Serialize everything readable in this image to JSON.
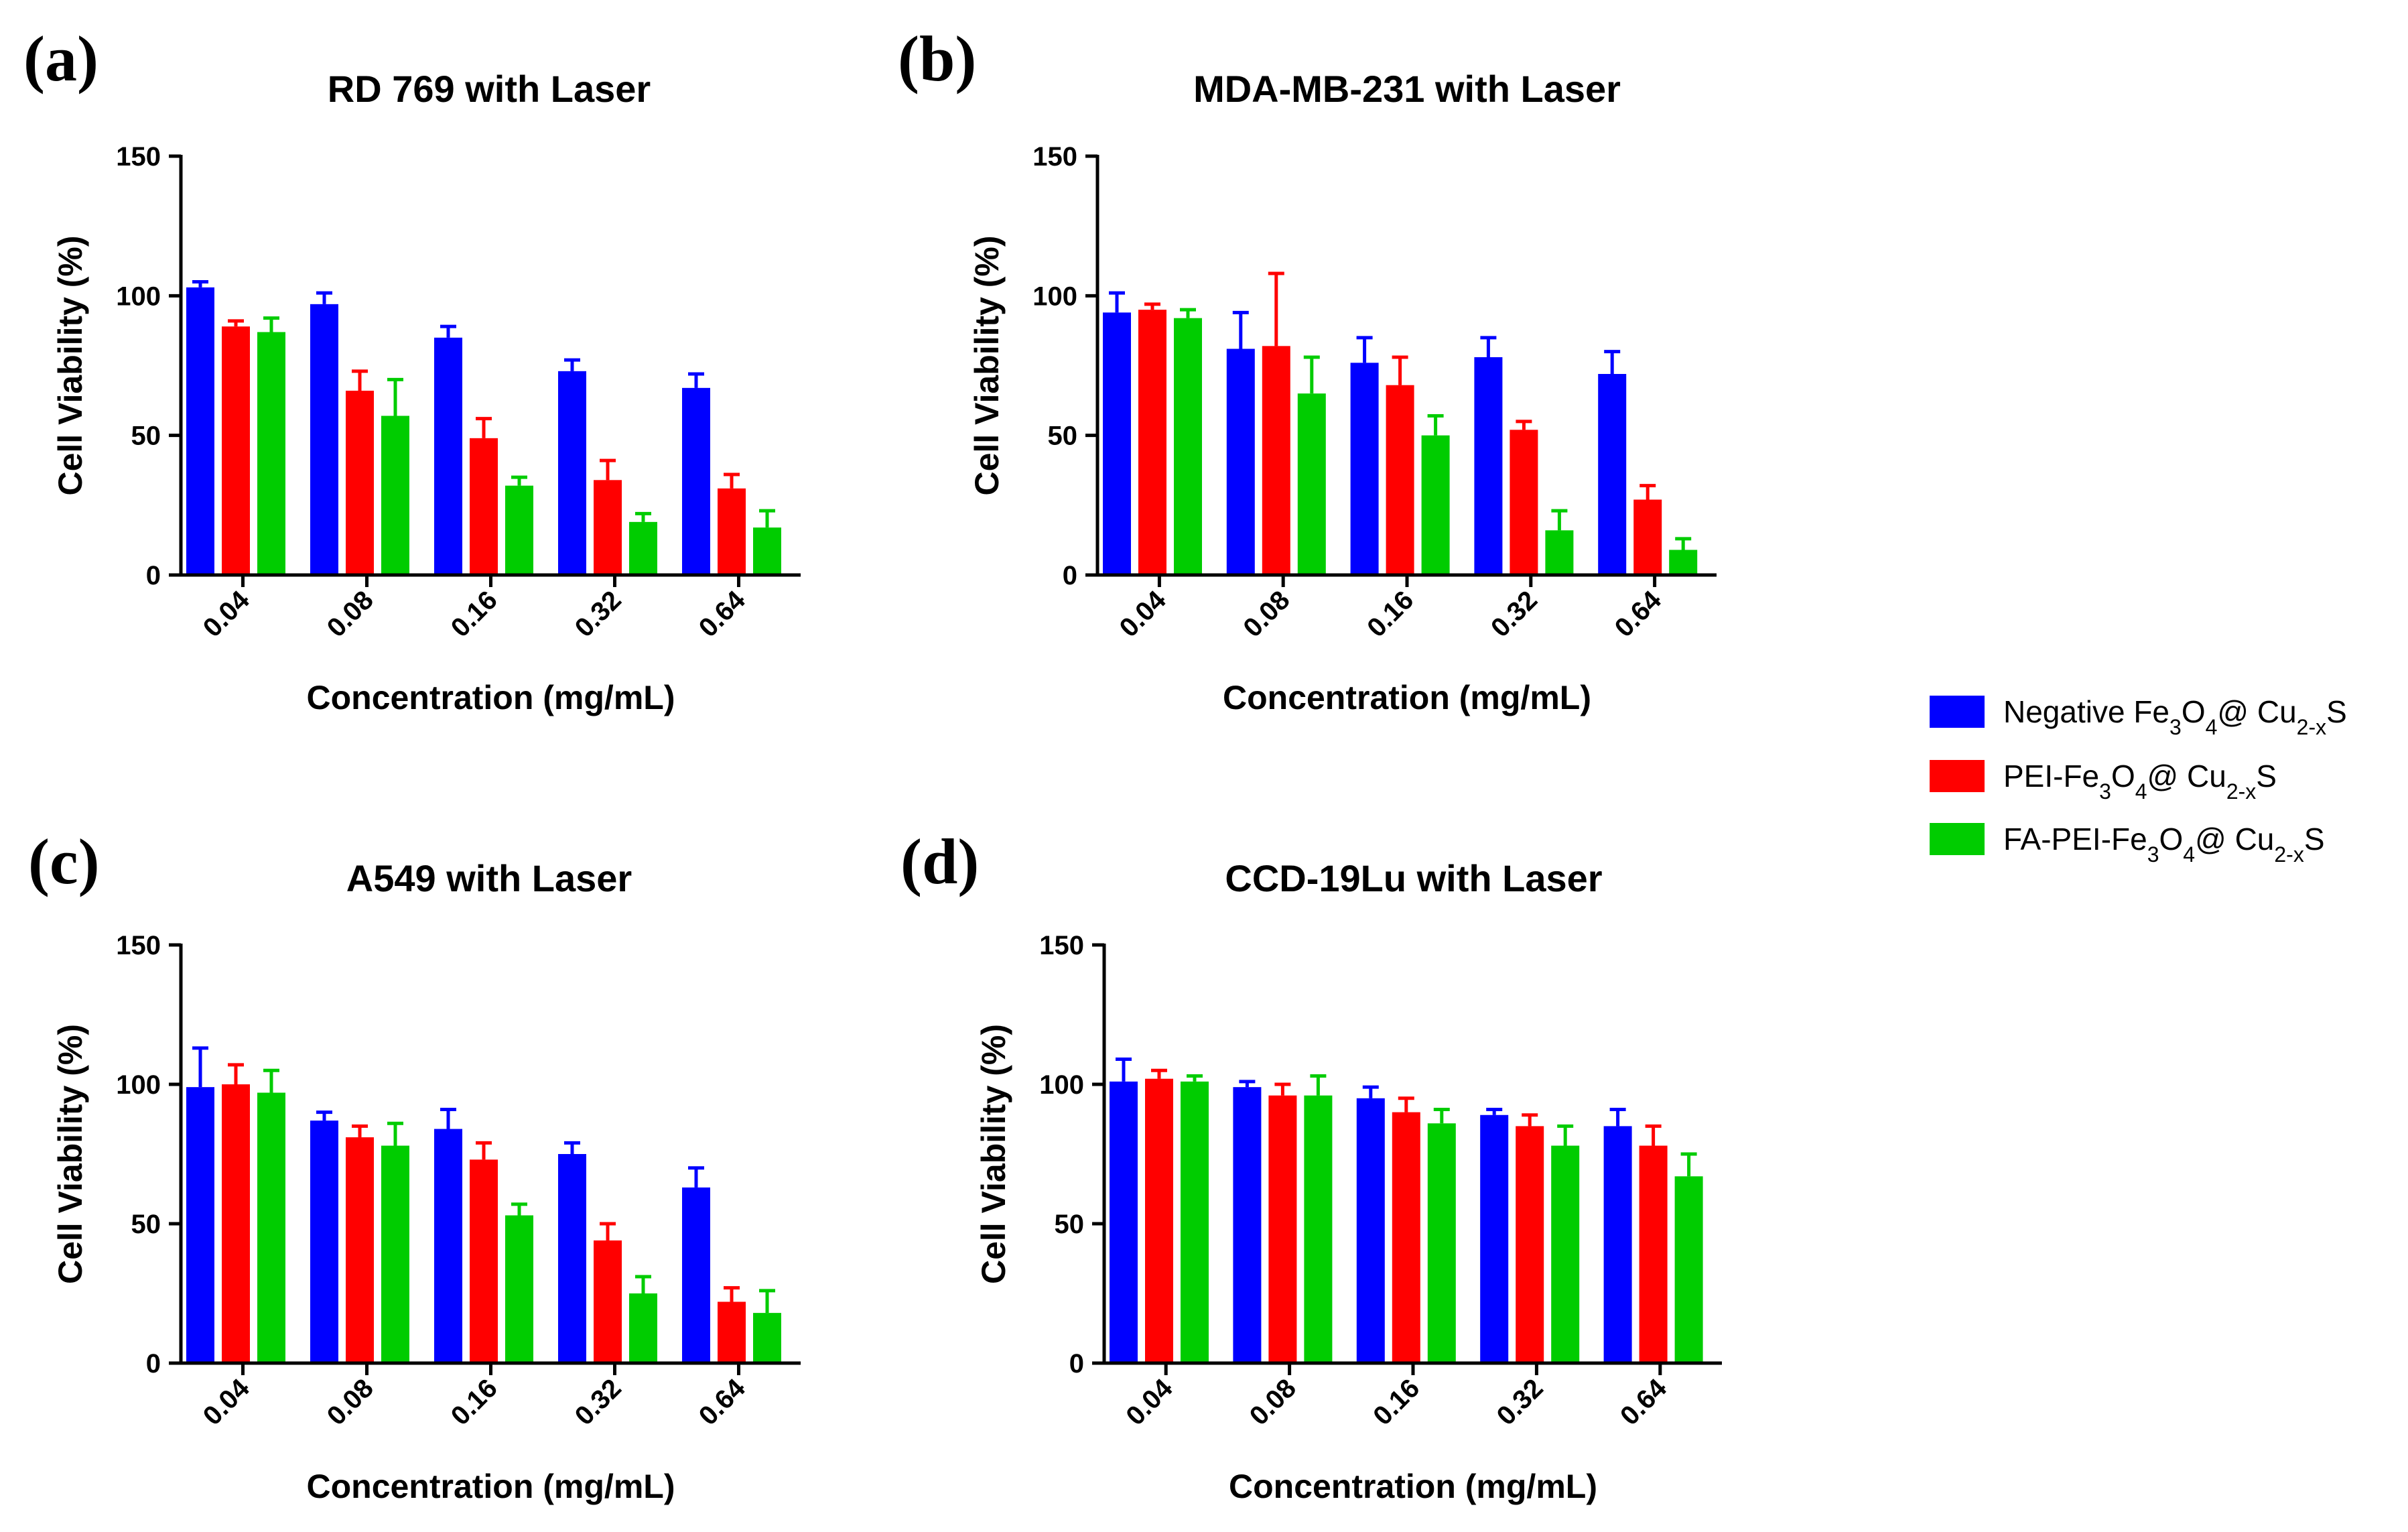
{
  "legend": {
    "items": [
      {
        "color": "#0000ff",
        "parts": [
          [
            "Negative Fe",
            ""
          ],
          [
            "3",
            "sub"
          ],
          [
            "O",
            ""
          ],
          [
            "4",
            "sub"
          ],
          [
            "@ Cu",
            ""
          ],
          [
            "2-x",
            "sub"
          ],
          [
            "S",
            ""
          ]
        ]
      },
      {
        "color": "#ff0000",
        "parts": [
          [
            "PEI-Fe",
            ""
          ],
          [
            "3",
            "sub"
          ],
          [
            "O",
            ""
          ],
          [
            "4",
            "sub"
          ],
          [
            "@ Cu",
            ""
          ],
          [
            "2-x",
            "sub"
          ],
          [
            "S",
            ""
          ]
        ]
      },
      {
        "color": "#00cc00",
        "parts": [
          [
            "FA-PEI-Fe",
            ""
          ],
          [
            "3",
            "sub"
          ],
          [
            "O",
            ""
          ],
          [
            "4",
            "sub"
          ],
          [
            "@ Cu",
            ""
          ],
          [
            "2-x",
            "sub"
          ],
          [
            "S",
            ""
          ]
        ]
      }
    ]
  },
  "colors": {
    "series": [
      "#0000ff",
      "#ff0000",
      "#00cc00"
    ]
  },
  "chart_data": [
    {
      "panel": "(a)",
      "type": "bar",
      "title": "RD 769 with Laser",
      "xlabel": "Concentration (mg/mL)",
      "ylabel": "Cell Viability (%)",
      "ylim": [
        0,
        150
      ],
      "yticks": [
        0,
        50,
        100,
        150
      ],
      "categories": [
        "0.04",
        "0.08",
        "0.16",
        "0.32",
        "0.64"
      ],
      "series": [
        {
          "values": [
            103,
            97,
            85,
            73,
            67
          ],
          "errors": [
            2,
            4,
            4,
            4,
            5
          ]
        },
        {
          "values": [
            89,
            66,
            49,
            34,
            31
          ],
          "errors": [
            2,
            7,
            7,
            7,
            5
          ]
        },
        {
          "values": [
            87,
            57,
            32,
            19,
            17
          ],
          "errors": [
            5,
            13,
            3,
            3,
            6
          ]
        }
      ]
    },
    {
      "panel": "(b)",
      "type": "bar",
      "title": "MDA-MB-231 with Laser",
      "xlabel": "Concentration (mg/mL)",
      "ylabel": "Cell Viability (%)",
      "ylim": [
        0,
        150
      ],
      "yticks": [
        0,
        50,
        100,
        150
      ],
      "categories": [
        "0.04",
        "0.08",
        "0.16",
        "0.32",
        "0.64"
      ],
      "series": [
        {
          "values": [
            94,
            81,
            76,
            78,
            72
          ],
          "errors": [
            7,
            13,
            9,
            7,
            8
          ]
        },
        {
          "values": [
            95,
            82,
            68,
            52,
            27
          ],
          "errors": [
            2,
            26,
            10,
            3,
            5
          ]
        },
        {
          "values": [
            92,
            65,
            50,
            16,
            9
          ],
          "errors": [
            3,
            13,
            7,
            7,
            4
          ]
        }
      ]
    },
    {
      "panel": "(c)",
      "type": "bar",
      "title": "A549 with Laser",
      "xlabel": "Concentration (mg/mL)",
      "ylabel": "Cell Viability (%)",
      "ylim": [
        0,
        150
      ],
      "yticks": [
        0,
        50,
        100,
        150
      ],
      "categories": [
        "0.04",
        "0.08",
        "0.16",
        "0.32",
        "0.64"
      ],
      "series": [
        {
          "values": [
            99,
            87,
            84,
            75,
            63
          ],
          "errors": [
            14,
            3,
            7,
            4,
            7
          ]
        },
        {
          "values": [
            100,
            81,
            73,
            44,
            22
          ],
          "errors": [
            7,
            4,
            6,
            6,
            5
          ]
        },
        {
          "values": [
            97,
            78,
            53,
            25,
            18
          ],
          "errors": [
            8,
            8,
            4,
            6,
            8
          ]
        }
      ]
    },
    {
      "panel": "(d)",
      "type": "bar",
      "title": "CCD-19Lu with Laser",
      "xlabel": "Concentration (mg/mL)",
      "ylabel": "Cell Viability (%)",
      "ylim": [
        0,
        150
      ],
      "yticks": [
        0,
        50,
        100,
        150
      ],
      "categories": [
        "0.04",
        "0.08",
        "0.16",
        "0.32",
        "0.64"
      ],
      "series": [
        {
          "values": [
            101,
            99,
            95,
            89,
            85
          ],
          "errors": [
            8,
            2,
            4,
            2,
            6
          ]
        },
        {
          "values": [
            102,
            96,
            90,
            85,
            78
          ],
          "errors": [
            3,
            4,
            5,
            4,
            7
          ]
        },
        {
          "values": [
            101,
            96,
            86,
            78,
            67
          ],
          "errors": [
            2,
            7,
            5,
            7,
            8
          ]
        }
      ]
    }
  ]
}
